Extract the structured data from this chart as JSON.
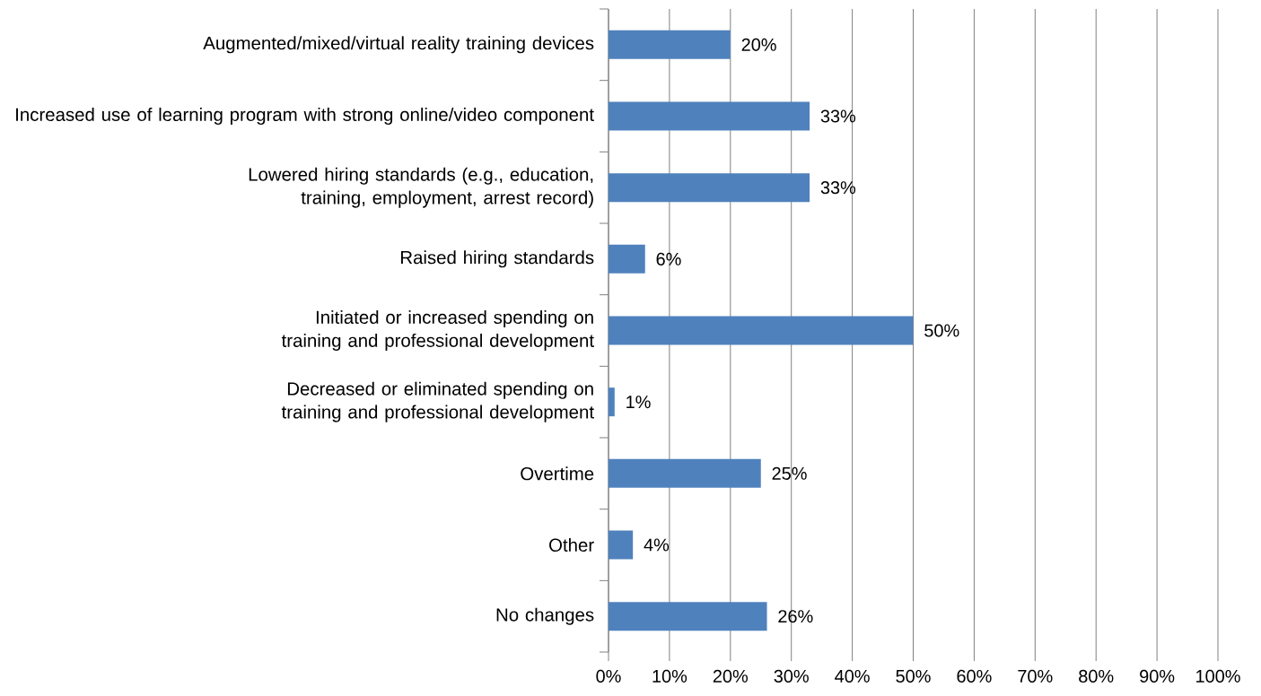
{
  "chart_data": {
    "type": "bar",
    "orientation": "horizontal",
    "categories": [
      "Augmented/mixed/virtual reality training devices",
      "Increased use of learning program with strong online/video component",
      "Lowered hiring standards (e.g., education, training, employment, arrest record)",
      "Raised hiring standards",
      "Initiated or increased spending on training and professional development",
      "Decreased or eliminated spending on training and professional development",
      "Overtime",
      "Other",
      "No changes"
    ],
    "values": [
      20,
      33,
      33,
      6,
      50,
      1,
      25,
      4,
      26
    ],
    "value_labels": [
      "20%",
      "33%",
      "33%",
      "6%",
      "50%",
      "1%",
      "25%",
      "4%",
      "26%"
    ],
    "color": "#4f81bd",
    "xlim": [
      0,
      100
    ],
    "xticks": [
      {
        "value": 0,
        "label": "0%"
      },
      {
        "value": 10,
        "label": "10%"
      },
      {
        "value": 20,
        "label": "20%"
      },
      {
        "value": 30,
        "label": "30%"
      },
      {
        "value": 40,
        "label": "40%"
      },
      {
        "value": 50,
        "label": "50%"
      },
      {
        "value": 60,
        "label": "60%"
      },
      {
        "value": 70,
        "label": "70%"
      },
      {
        "value": 80,
        "label": "80%"
      },
      {
        "value": 90,
        "label": "90%"
      },
      {
        "value": 100,
        "label": "100%"
      }
    ],
    "grid": "x"
  }
}
